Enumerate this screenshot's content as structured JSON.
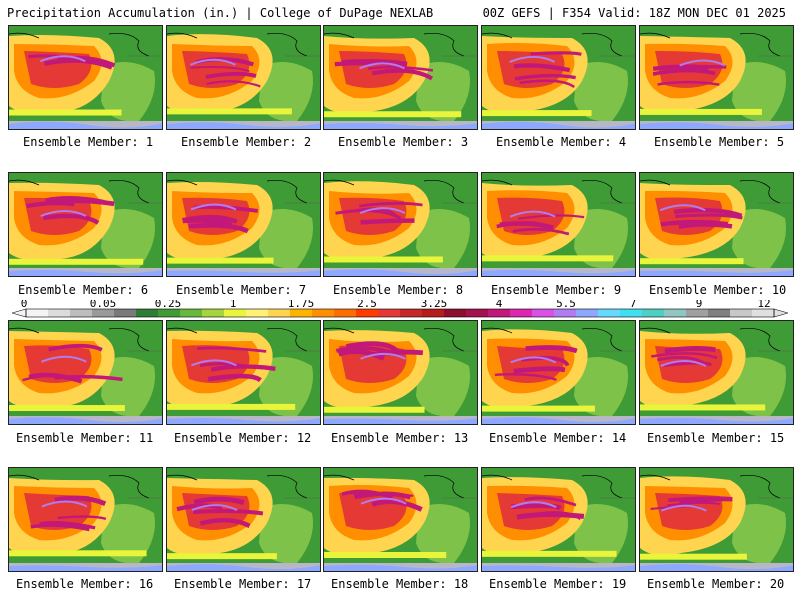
{
  "header": {
    "title_left": "Precipitation Accumulation (in.) | College of DuPage NEXLAB",
    "title_right": "00Z GEFS | F354 Valid: 18Z MON DEC 01 2025"
  },
  "members": [
    {
      "label": "Ensemble Member: 1"
    },
    {
      "label": "Ensemble Member: 2"
    },
    {
      "label": "Ensemble Member: 3"
    },
    {
      "label": "Ensemble Member: 4"
    },
    {
      "label": "Ensemble Member: 5"
    },
    {
      "label": "Ensemble Member: 6"
    },
    {
      "label": "Ensemble Member: 7"
    },
    {
      "label": "Ensemble Member: 8"
    },
    {
      "label": "Ensemble Member: 9"
    },
    {
      "label": "Ensemble Member: 10"
    },
    {
      "label": "Ensemble Member: 11"
    },
    {
      "label": "Ensemble Member: 12"
    },
    {
      "label": "Ensemble Member: 13"
    },
    {
      "label": "Ensemble Member: 14"
    },
    {
      "label": "Ensemble Member: 15"
    },
    {
      "label": "Ensemble Member: 16"
    },
    {
      "label": "Ensemble Member: 17"
    },
    {
      "label": "Ensemble Member: 18"
    },
    {
      "label": "Ensemble Member: 19"
    },
    {
      "label": "Ensemble Member: 20"
    }
  ],
  "colorbar": {
    "tick_labels": [
      "0",
      "0.05",
      "0.25",
      "1",
      "1.75",
      "2.5",
      "3.25",
      "4",
      "5.5",
      "7",
      "9",
      "12"
    ],
    "colors": [
      "#f4f4f4",
      "#dcdcdc",
      "#bdbdbd",
      "#9a9a9a",
      "#7a7a7a",
      "#2e7d32",
      "#3f9b35",
      "#68b83c",
      "#a6d43d",
      "#e8f53a",
      "#fff176",
      "#ffd54f",
      "#ffb300",
      "#ff8f00",
      "#ff6d00",
      "#ff3d00",
      "#e53935",
      "#c62828",
      "#b71c1c",
      "#8e0e2e",
      "#a3124f",
      "#c2187a",
      "#e026b0",
      "#d94fe8",
      "#b07cf2",
      "#8ea8ff",
      "#66d9ff",
      "#40e0f0",
      "#4dd0c4",
      "#8fc7c0",
      "#a0a0a0",
      "#808080",
      "#c8c8c8",
      "#e0e0e0"
    ]
  }
}
